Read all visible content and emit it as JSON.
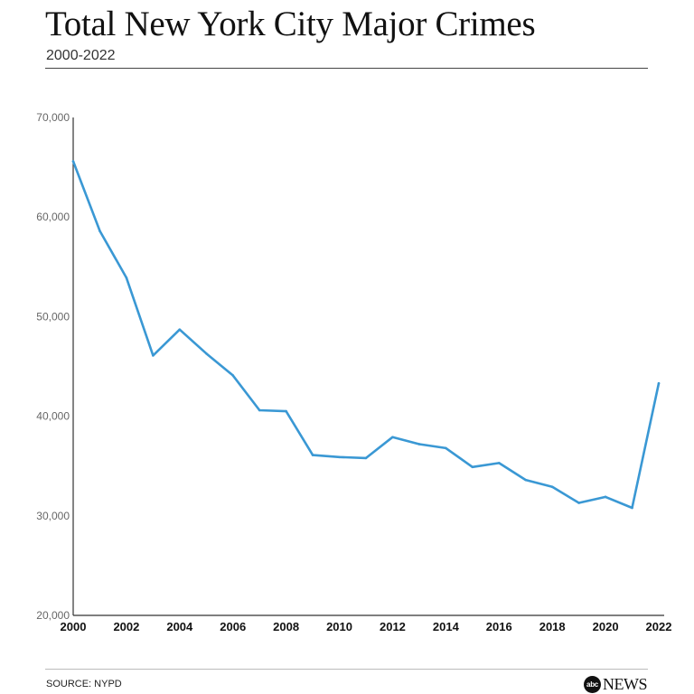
{
  "header": {
    "title": "Total New York City Major Crimes",
    "subtitle": "2000-2022"
  },
  "footer": {
    "source": "SOURCE: NYPD",
    "brand_logo": "abc",
    "brand_word": "NEWS"
  },
  "chart_data": {
    "type": "line",
    "title": "Total New York City Major Crimes",
    "subtitle": "2000-2022",
    "xlabel": "",
    "ylabel": "",
    "x": [
      2000,
      2001,
      2002,
      2003,
      2004,
      2005,
      2006,
      2007,
      2008,
      2009,
      2010,
      2011,
      2012,
      2013,
      2014,
      2015,
      2016,
      2017,
      2018,
      2019,
      2020,
      2021,
      2022
    ],
    "series": [
      {
        "values": [
          65600,
          58600,
          53900,
          46100,
          48700,
          46300,
          44100,
          40600,
          40500,
          36100,
          35900,
          35800,
          37900,
          37200,
          36800,
          34900,
          35300,
          33600,
          32900,
          31300,
          31900,
          30800,
          43300
        ],
        "color": "#3a98d4"
      }
    ],
    "xlim": [
      2000,
      2022
    ],
    "ylim": [
      20000,
      70000
    ],
    "x_ticks": [
      2000,
      2002,
      2004,
      2006,
      2008,
      2010,
      2012,
      2014,
      2016,
      2018,
      2020,
      2022
    ],
    "y_ticks": [
      20000,
      30000,
      40000,
      50000,
      60000,
      70000
    ],
    "y_tick_labels": [
      "20,000",
      "30,000",
      "40,000",
      "50,000",
      "60,000",
      "70,000"
    ],
    "grid": false,
    "legend": "none"
  }
}
